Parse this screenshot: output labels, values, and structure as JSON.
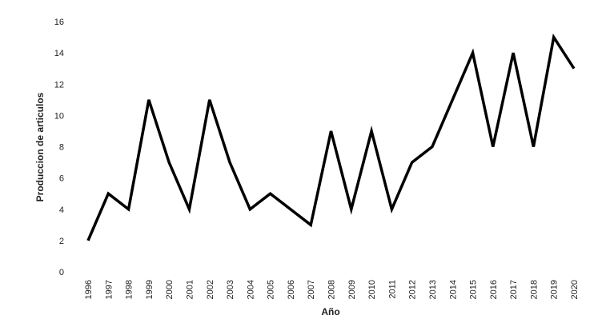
{
  "chart_data": {
    "type": "line",
    "x_label": "Año",
    "y_label": "Produccion de articulos",
    "categories": [
      "1996",
      "1997",
      "1998",
      "1999",
      "2000",
      "2001",
      "2002",
      "2003",
      "2004",
      "2005",
      "2006",
      "2007",
      "2008",
      "2009",
      "2010",
      "2011",
      "2012",
      "2013",
      "2014",
      "2015",
      "2016",
      "2017",
      "2018",
      "2019",
      "2020"
    ],
    "values": [
      2,
      5,
      4,
      11,
      7,
      4,
      11,
      7,
      4,
      5,
      4,
      3,
      9,
      4,
      9,
      4,
      7,
      8,
      11,
      14,
      8,
      14,
      8,
      15,
      13
    ],
    "color": "#000000",
    "ylim": [
      0,
      16
    ],
    "yticks": [
      0,
      2,
      4,
      6,
      8,
      10,
      12,
      14,
      16
    ],
    "grid": false
  }
}
